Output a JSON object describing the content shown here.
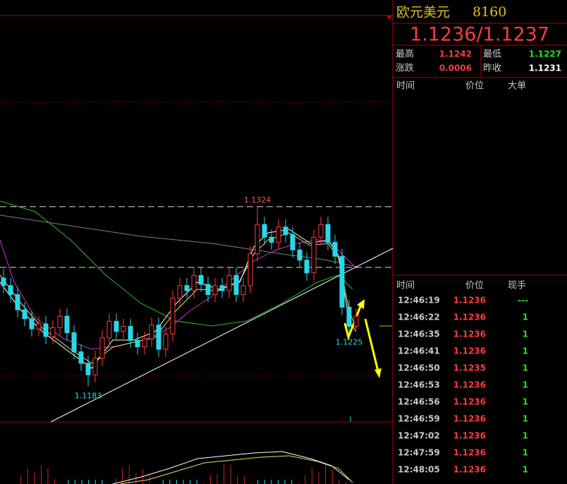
{
  "chart": {
    "ylim": [
      1.1155,
      1.1474
    ],
    "up_color": "#ff3b3b",
    "down_color": "#28d8e8",
    "candles": [
      [
        1.1268,
        1.1275,
        1.1256,
        1.1262
      ],
      [
        1.1262,
        1.1268,
        1.1249,
        1.1255
      ],
      [
        1.1255,
        1.1261,
        1.1237,
        1.1243
      ],
      [
        1.1243,
        1.1249,
        1.123,
        1.1236
      ],
      [
        1.1236,
        1.1242,
        1.1222,
        1.1228
      ],
      [
        1.1228,
        1.1238,
        1.1222,
        1.1232
      ],
      [
        1.1232,
        1.1238,
        1.1216,
        1.1222
      ],
      [
        1.1222,
        1.1235,
        1.1216,
        1.1229
      ],
      [
        1.1229,
        1.1244,
        1.1223,
        1.1238
      ],
      [
        1.1238,
        1.1244,
        1.1219,
        1.1225
      ],
      [
        1.1225,
        1.1231,
        1.1204,
        1.121
      ],
      [
        1.121,
        1.1216,
        1.1195,
        1.1201
      ],
      [
        1.1201,
        1.1207,
        1.1183,
        1.1192
      ],
      [
        1.1192,
        1.1211,
        1.1186,
        1.1205
      ],
      [
        1.1205,
        1.1227,
        1.1199,
        1.1221
      ],
      [
        1.1221,
        1.124,
        1.1215,
        1.1234
      ],
      [
        1.1234,
        1.124,
        1.122,
        1.1226
      ],
      [
        1.1226,
        1.1236,
        1.122,
        1.123
      ],
      [
        1.123,
        1.1236,
        1.1213,
        1.1219
      ],
      [
        1.1219,
        1.1225,
        1.1208,
        1.1214
      ],
      [
        1.1214,
        1.1226,
        1.1208,
        1.122
      ],
      [
        1.122,
        1.1237,
        1.1214,
        1.1231
      ],
      [
        1.1231,
        1.1237,
        1.1206,
        1.1212
      ],
      [
        1.1212,
        1.123,
        1.1206,
        1.1224
      ],
      [
        1.1224,
        1.1258,
        1.1218,
        1.1252
      ],
      [
        1.1252,
        1.1268,
        1.1246,
        1.1262
      ],
      [
        1.1262,
        1.1268,
        1.1252,
        1.1258
      ],
      [
        1.1258,
        1.1276,
        1.1252,
        1.127
      ],
      [
        1.127,
        1.1276,
        1.1257,
        1.1263
      ],
      [
        1.1263,
        1.1269,
        1.1249,
        1.1255
      ],
      [
        1.1255,
        1.1268,
        1.1249,
        1.1262
      ],
      [
        1.1262,
        1.1268,
        1.1252,
        1.1258
      ],
      [
        1.1258,
        1.1276,
        1.1252,
        1.127
      ],
      [
        1.127,
        1.1276,
        1.1249,
        1.1255
      ],
      [
        1.1255,
        1.1268,
        1.1249,
        1.1262
      ],
      [
        1.1262,
        1.1293,
        1.1256,
        1.1287
      ],
      [
        1.1287,
        1.1324,
        1.1281,
        1.131
      ],
      [
        1.131,
        1.1316,
        1.1294,
        1.13
      ],
      [
        1.13,
        1.1306,
        1.129,
        1.1296
      ],
      [
        1.1296,
        1.1314,
        1.129,
        1.1308
      ],
      [
        1.1308,
        1.1314,
        1.1296,
        1.1302
      ],
      [
        1.1302,
        1.1308,
        1.1284,
        1.129
      ],
      [
        1.129,
        1.1296,
        1.1276,
        1.1282
      ],
      [
        1.1282,
        1.1288,
        1.1266,
        1.1272
      ],
      [
        1.1272,
        1.1306,
        1.1266,
        1.13
      ],
      [
        1.13,
        1.1316,
        1.1294,
        1.131
      ],
      [
        1.131,
        1.1316,
        1.129,
        1.1296
      ],
      [
        1.1296,
        1.1302,
        1.1279,
        1.1285
      ],
      [
        1.1285,
        1.1291,
        1.1239,
        1.1245
      ],
      [
        1.1245,
        1.1251,
        1.1225,
        1.123
      ],
      [
        1.123,
        1.1244,
        1.1228,
        1.1238
      ]
    ],
    "price_labels": [
      {
        "value": 1.1324,
        "label": "1.1324",
        "color": "#ff5050",
        "candle": 36
      },
      {
        "value": 1.1225,
        "label": "1.1225",
        "color": "#28d8e8",
        "candle": 49
      },
      {
        "value": 1.1183,
        "label": "1.1183",
        "color": "#28d8e8",
        "candle": 12
      }
    ]
  },
  "panel": {
    "name": "欧元美元",
    "code": "8160",
    "quote": "1.1236/1.1237",
    "stats": [
      [
        "最高",
        "1.1242",
        "最低",
        "1.1227"
      ],
      [
        "涨跌",
        "0.0006",
        "昨收",
        "1.1231"
      ]
    ],
    "big_header": [
      "时间",
      "价位",
      "大单"
    ],
    "tick_header": [
      "时间",
      "价位",
      "现手"
    ],
    "ticks": [
      [
        "12:46:19",
        "1.1236",
        "---"
      ],
      [
        "12:46:22",
        "1.1236",
        "1"
      ],
      [
        "12:46:35",
        "1.1236",
        "1"
      ],
      [
        "12:46:41",
        "1.1236",
        "1"
      ],
      [
        "12:46:50",
        "1.1235",
        "1"
      ],
      [
        "12:46:53",
        "1.1236",
        "1"
      ],
      [
        "12:46:56",
        "1.1236",
        "1"
      ],
      [
        "12:46:59",
        "1.1236",
        "1"
      ],
      [
        "12:47:02",
        "1.1236",
        "1"
      ],
      [
        "12:47:59",
        "1.1236",
        "1"
      ],
      [
        "12:48:05",
        "1.1236",
        "1"
      ]
    ]
  }
}
